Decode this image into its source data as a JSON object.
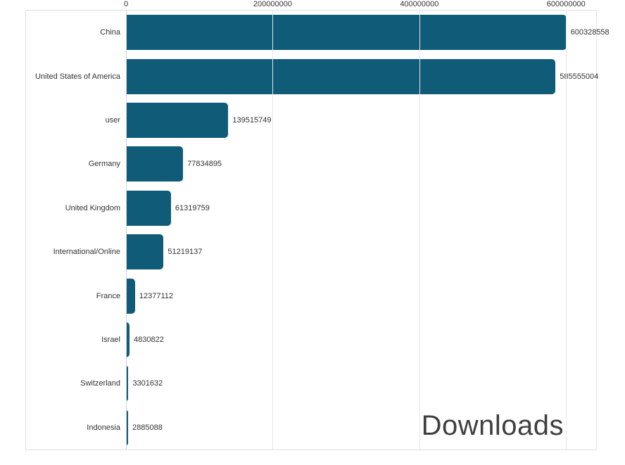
{
  "chart_data": {
    "type": "bar",
    "orientation": "horizontal",
    "title": "Downloads",
    "categories": [
      "China",
      "United States of America",
      "user",
      "Germany",
      "United Kingdom",
      "International/Online",
      "France",
      "Israel",
      "Switzerland",
      "Indonesia"
    ],
    "values": [
      600328558,
      585555004,
      139515749,
      77834895,
      61319759,
      51219137,
      12377112,
      4830822,
      3301632,
      2885088
    ],
    "value_labels": [
      "600328558",
      "585555004",
      "139515749",
      "77834895",
      "61319759",
      "51219137",
      "12377112",
      "4830822",
      "3301632",
      "2885088"
    ],
    "xlabel": "",
    "ylabel": "",
    "xlim": [
      0,
      641000000
    ],
    "x_ticks": [
      0,
      200000000,
      400000000,
      600000000
    ],
    "x_tick_labels": [
      "0",
      "200000000",
      "400000000",
      "600000000"
    ],
    "bar_color": "#0f5b78",
    "grid": true,
    "legend": false,
    "title_position": "bottom-right"
  }
}
